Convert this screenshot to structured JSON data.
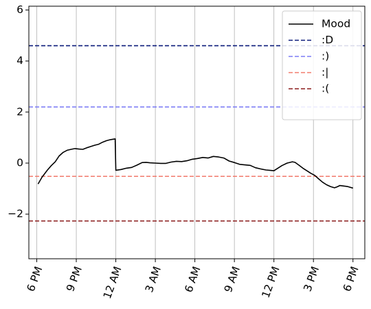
{
  "chart_data": {
    "type": "line",
    "title": "",
    "xlabel": "",
    "ylabel": "",
    "xlim": [
      -0.6,
      24.9
    ],
    "ylim": [
      -3.75,
      6.15
    ],
    "grid": "vertical",
    "legend_position": "top-right",
    "x_ticks": [
      {
        "x": 0,
        "label": "6 PM"
      },
      {
        "x": 3,
        "label": "9 PM"
      },
      {
        "x": 6,
        "label": "12 AM"
      },
      {
        "x": 9,
        "label": "3 AM"
      },
      {
        "x": 12,
        "label": "6 AM"
      },
      {
        "x": 15,
        "label": "9 AM"
      },
      {
        "x": 18,
        "label": "12 PM"
      },
      {
        "x": 21,
        "label": "3 PM"
      },
      {
        "x": 24,
        "label": "6 PM"
      }
    ],
    "y_ticks": [
      {
        "y": -2,
        "label": "−2"
      },
      {
        "y": 0,
        "label": "0"
      },
      {
        "y": 2,
        "label": "2"
      },
      {
        "y": 4,
        "label": "4"
      },
      {
        "y": 6,
        "label": "6"
      }
    ],
    "series": [
      {
        "name": "Mood",
        "color": "#000000",
        "style": "solid",
        "x": [
          0.1,
          0.4,
          0.8,
          1.1,
          1.4,
          1.7,
          2.0,
          2.3,
          2.6,
          2.9,
          3.2,
          3.5,
          3.8,
          4.1,
          4.4,
          4.7,
          5.0,
          5.3,
          5.6,
          5.95,
          6.0,
          6.4,
          6.8,
          7.2,
          7.6,
          8.0,
          8.3,
          8.6,
          9.0,
          9.4,
          9.8,
          10.2,
          10.6,
          11.0,
          11.4,
          11.8,
          12.2,
          12.6,
          13.0,
          13.4,
          13.8,
          14.2,
          14.6,
          15.0,
          15.4,
          15.8,
          16.2,
          16.6,
          17.0,
          17.4,
          17.8,
          18.0,
          18.3,
          18.6,
          19.0,
          19.4,
          19.6,
          19.9,
          20.2,
          20.5,
          20.8,
          21.1,
          21.4,
          21.7,
          22.0,
          22.3,
          22.6,
          22.8,
          23.0,
          23.3,
          23.6,
          24.0
        ],
        "y": [
          -0.82,
          -0.55,
          -0.28,
          -0.1,
          0.05,
          0.28,
          0.42,
          0.5,
          0.54,
          0.57,
          0.55,
          0.54,
          0.6,
          0.65,
          0.7,
          0.74,
          0.82,
          0.88,
          0.92,
          0.95,
          -0.28,
          -0.25,
          -0.2,
          -0.17,
          -0.08,
          0.02,
          0.03,
          0.01,
          0.0,
          -0.01,
          -0.01,
          0.04,
          0.07,
          0.06,
          0.09,
          0.15,
          0.18,
          0.22,
          0.2,
          0.26,
          0.24,
          0.2,
          0.08,
          0.02,
          -0.05,
          -0.07,
          -0.09,
          -0.18,
          -0.23,
          -0.27,
          -0.29,
          -0.3,
          -0.2,
          -0.1,
          0.0,
          0.05,
          0.03,
          -0.08,
          -0.2,
          -0.3,
          -0.4,
          -0.48,
          -0.62,
          -0.75,
          -0.85,
          -0.92,
          -0.97,
          -0.93,
          -0.88,
          -0.9,
          -0.92,
          -0.98
        ]
      },
      {
        "name": ":D",
        "color": "#0b1a7a",
        "style": "dashed",
        "hline": 4.6
      },
      {
        "name": ":)",
        "color": "#7b7bf5",
        "style": "dashed",
        "hline": 2.2
      },
      {
        "name": ":|",
        "color": "#f27a6b",
        "style": "dashed",
        "hline": -0.52
      },
      {
        "name": ":(",
        "color": "#8b1c1c",
        "style": "dashed",
        "hline": -2.27
      }
    ]
  }
}
